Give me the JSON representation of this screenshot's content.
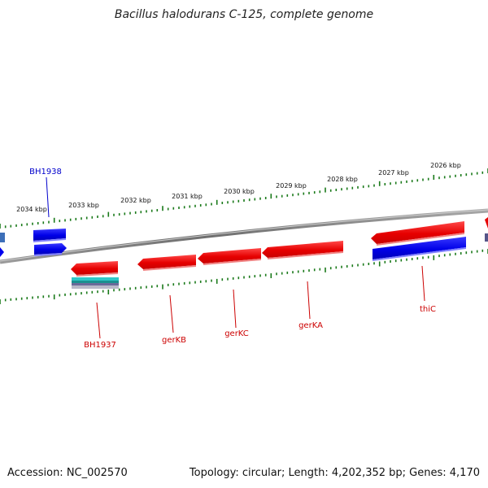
{
  "title": "Bacillus halodurans C-125, complete genome",
  "footer": {
    "accession": "Accession: NC_002570",
    "summary": "Topology: circular; Length: 4,202,352 bp; Genes: 4,170"
  },
  "colors": {
    "forward": "#ee0000",
    "reverse": "#0000ee",
    "label_forward": "#cc0000",
    "label_reverse": "#0000cc",
    "ticks": "#1a7a1a",
    "backbone": "#888888"
  },
  "ruler": [
    "2034 kbp",
    "2033 kbp",
    "2032 kbp",
    "2031 kbp",
    "2030 kbp",
    "2029 kbp",
    "2028 kbp",
    "2027 kbp",
    "2026 kbp"
  ],
  "gene_labels": [
    {
      "name": "BH1938",
      "strand": "reverse"
    },
    {
      "name": "BH1937",
      "strand": "forward"
    },
    {
      "name": "gerKB",
      "strand": "forward"
    },
    {
      "name": "gerKC",
      "strand": "forward"
    },
    {
      "name": "gerKA",
      "strand": "forward"
    },
    {
      "name": "thiC",
      "strand": "forward"
    }
  ]
}
